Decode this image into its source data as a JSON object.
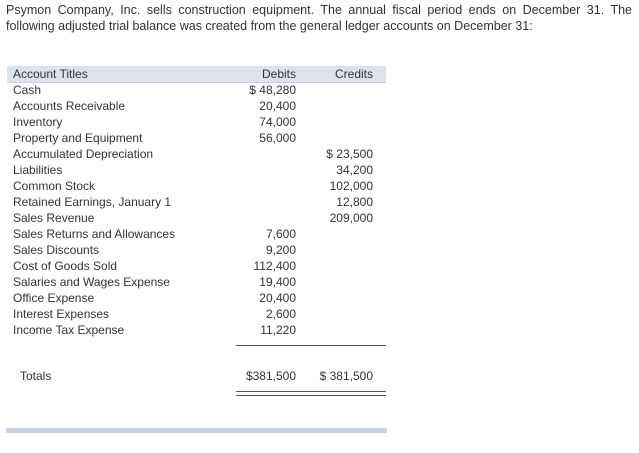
{
  "intro": "Psymon Company, Inc. sells construction equipment. The annual fiscal period ends on December 31. The following adjusted trial balance was created from the general ledger accounts on December 31:",
  "table": {
    "headers": {
      "title": "Account Titles",
      "debits": "Debits",
      "credits": "Credits"
    },
    "rows": [
      {
        "title": "Cash",
        "debit": "$ 48,280",
        "credit": ""
      },
      {
        "title": "Accounts Receivable",
        "debit": "20,400",
        "credit": ""
      },
      {
        "title": "Inventory",
        "debit": "74,000",
        "credit": ""
      },
      {
        "title": "Property and Equipment",
        "debit": "56,000",
        "credit": ""
      },
      {
        "title": "Accumulated Depreciation",
        "debit": "",
        "credit": "$ 23,500"
      },
      {
        "title": "Liabilities",
        "debit": "",
        "credit": "34,200"
      },
      {
        "title": "Common Stock",
        "debit": "",
        "credit": "102,000"
      },
      {
        "title": "Retained Earnings, January 1",
        "debit": "",
        "credit": "12,800"
      },
      {
        "title": "Sales Revenue",
        "debit": "",
        "credit": "209,000"
      },
      {
        "title": "Sales Returns and Allowances",
        "debit": "7,600",
        "credit": ""
      },
      {
        "title": "Sales Discounts",
        "debit": "9,200",
        "credit": ""
      },
      {
        "title": "Cost of Goods Sold",
        "debit": "112,400",
        "credit": ""
      },
      {
        "title": "Salaries and Wages Expense",
        "debit": "19,400",
        "credit": ""
      },
      {
        "title": "Office Expense",
        "debit": "20,400",
        "credit": ""
      },
      {
        "title": "Interest Expenses",
        "debit": "2,600",
        "credit": ""
      },
      {
        "title": "Income Tax Expense",
        "debit": "11,220",
        "credit": ""
      }
    ],
    "totals": {
      "title": "Totals",
      "debit": "$381,500",
      "credit": "$ 381,500"
    }
  }
}
